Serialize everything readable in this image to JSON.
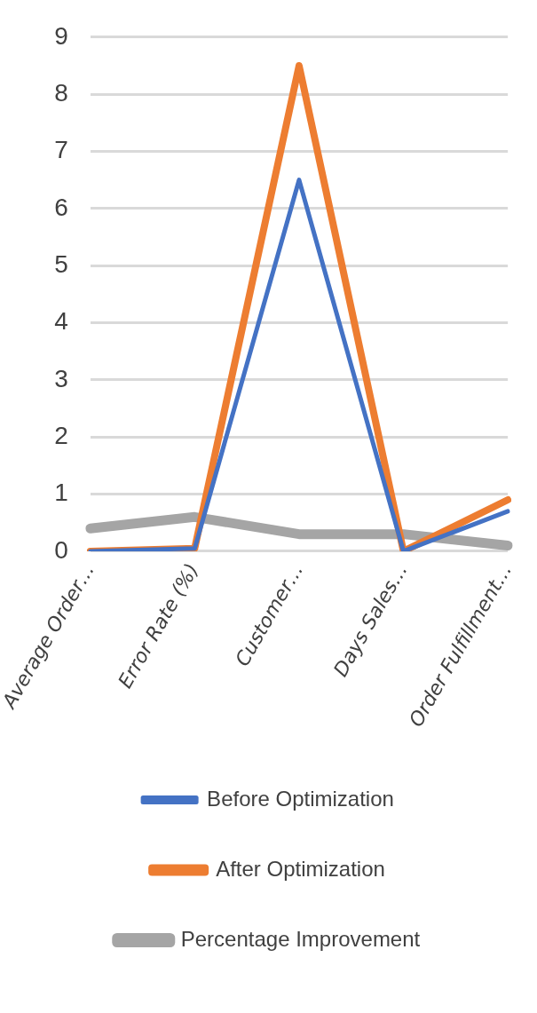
{
  "chart_data": {
    "type": "line",
    "categories": [
      "Average Order…",
      "Error Rate (%)",
      "Customer…",
      "Days Sales…",
      "Order Fulfillment…"
    ],
    "series": [
      {
        "name": "Before Optimization",
        "color": "#4472c4",
        "values": [
          0,
          0.05,
          6.5,
          0,
          0.7
        ]
      },
      {
        "name": "After Optimization",
        "color": "#ed7d31",
        "values": [
          0,
          0.05,
          8.5,
          0,
          0.9
        ]
      },
      {
        "name": "Percentage Improvement",
        "color": "#a5a5a5",
        "values": [
          0.4,
          0.6,
          0.3,
          0.3,
          0.1
        ]
      }
    ],
    "ylim": [
      0,
      9
    ],
    "yticks": [
      0,
      1,
      2,
      3,
      4,
      5,
      6,
      7,
      8,
      9
    ],
    "grid": "y",
    "legend": "bottom",
    "marker": "none",
    "line_style": "solid"
  }
}
